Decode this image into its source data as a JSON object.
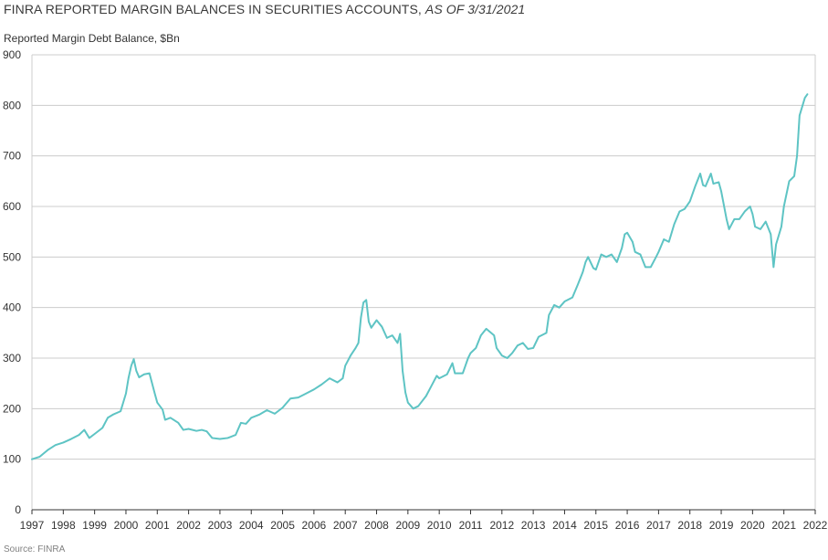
{
  "header": {
    "title_main": "FINRA REPORTED MARGIN BALANCES IN SECURITIES ACCOUNTS,",
    "title_suffix": "AS OF 3/31/2021"
  },
  "axis": {
    "ylabel": "Reported Margin Debt Balance, $Bn"
  },
  "footer": {
    "source": "Source: FINRA"
  },
  "chart_data": {
    "type": "line",
    "title": "FINRA REPORTED MARGIN BALANCES IN SECURITIES ACCOUNTS, AS OF 3/31/2021",
    "xlabel": "",
    "ylabel": "Reported Margin Debt Balance, $Bn",
    "xlim": [
      1997,
      2022
    ],
    "ylim": [
      0,
      900
    ],
    "grid": true,
    "line_color": "#5ec4c4",
    "grid_color": "#cccccc",
    "x_ticks": [
      "1997",
      "1998",
      "1999",
      "2000",
      "2001",
      "2002",
      "2003",
      "2004",
      "2005",
      "2006",
      "2007",
      "2008",
      "2009",
      "2010",
      "2011",
      "2012",
      "2013",
      "2014",
      "2015",
      "2016",
      "2017",
      "2018",
      "2019",
      "2020",
      "2021",
      "2022"
    ],
    "y_ticks": [
      "0",
      "100",
      "200",
      "300",
      "400",
      "500",
      "600",
      "700",
      "800",
      "900"
    ],
    "series": [
      {
        "points": [
          [
            1997.0,
            100
          ],
          [
            1997.25,
            105
          ],
          [
            1997.5,
            118
          ],
          [
            1997.75,
            128
          ],
          [
            1998.0,
            133
          ],
          [
            1998.25,
            140
          ],
          [
            1998.5,
            148
          ],
          [
            1998.67,
            158
          ],
          [
            1998.83,
            142
          ],
          [
            1999.0,
            150
          ],
          [
            1999.25,
            162
          ],
          [
            1999.42,
            182
          ],
          [
            1999.58,
            188
          ],
          [
            1999.83,
            195
          ],
          [
            2000.0,
            230
          ],
          [
            2000.08,
            260
          ],
          [
            2000.17,
            285
          ],
          [
            2000.25,
            298
          ],
          [
            2000.33,
            275
          ],
          [
            2000.42,
            262
          ],
          [
            2000.58,
            268
          ],
          [
            2000.75,
            270
          ],
          [
            2000.92,
            230
          ],
          [
            2001.0,
            212
          ],
          [
            2001.17,
            198
          ],
          [
            2001.25,
            178
          ],
          [
            2001.42,
            182
          ],
          [
            2001.67,
            172
          ],
          [
            2001.83,
            158
          ],
          [
            2002.0,
            160
          ],
          [
            2002.25,
            156
          ],
          [
            2002.42,
            158
          ],
          [
            2002.58,
            155
          ],
          [
            2002.75,
            142
          ],
          [
            2003.0,
            140
          ],
          [
            2003.25,
            142
          ],
          [
            2003.5,
            148
          ],
          [
            2003.67,
            172
          ],
          [
            2003.83,
            170
          ],
          [
            2004.0,
            182
          ],
          [
            2004.25,
            188
          ],
          [
            2004.5,
            197
          ],
          [
            2004.75,
            190
          ],
          [
            2005.0,
            202
          ],
          [
            2005.25,
            220
          ],
          [
            2005.5,
            222
          ],
          [
            2005.75,
            230
          ],
          [
            2006.0,
            238
          ],
          [
            2006.25,
            248
          ],
          [
            2006.5,
            260
          ],
          [
            2006.75,
            252
          ],
          [
            2006.92,
            260
          ],
          [
            2007.0,
            285
          ],
          [
            2007.17,
            305
          ],
          [
            2007.33,
            320
          ],
          [
            2007.42,
            330
          ],
          [
            2007.5,
            380
          ],
          [
            2007.58,
            410
          ],
          [
            2007.67,
            415
          ],
          [
            2007.75,
            372
          ],
          [
            2007.83,
            360
          ],
          [
            2008.0,
            375
          ],
          [
            2008.17,
            362
          ],
          [
            2008.33,
            340
          ],
          [
            2008.5,
            345
          ],
          [
            2008.67,
            330
          ],
          [
            2008.75,
            348
          ],
          [
            2008.83,
            275
          ],
          [
            2008.92,
            232
          ],
          [
            2009.0,
            212
          ],
          [
            2009.17,
            200
          ],
          [
            2009.33,
            205
          ],
          [
            2009.58,
            225
          ],
          [
            2009.75,
            245
          ],
          [
            2009.92,
            265
          ],
          [
            2010.0,
            260
          ],
          [
            2010.25,
            268
          ],
          [
            2010.42,
            290
          ],
          [
            2010.5,
            270
          ],
          [
            2010.75,
            270
          ],
          [
            2010.92,
            300
          ],
          [
            2011.0,
            310
          ],
          [
            2011.17,
            320
          ],
          [
            2011.33,
            345
          ],
          [
            2011.5,
            358
          ],
          [
            2011.75,
            345
          ],
          [
            2011.83,
            320
          ],
          [
            2012.0,
            305
          ],
          [
            2012.17,
            300
          ],
          [
            2012.33,
            310
          ],
          [
            2012.5,
            325
          ],
          [
            2012.67,
            330
          ],
          [
            2012.83,
            318
          ],
          [
            2013.0,
            320
          ],
          [
            2013.17,
            342
          ],
          [
            2013.42,
            350
          ],
          [
            2013.5,
            385
          ],
          [
            2013.67,
            405
          ],
          [
            2013.83,
            400
          ],
          [
            2014.0,
            412
          ],
          [
            2014.25,
            420
          ],
          [
            2014.42,
            445
          ],
          [
            2014.58,
            470
          ],
          [
            2014.67,
            490
          ],
          [
            2014.75,
            500
          ],
          [
            2014.92,
            478
          ],
          [
            2015.0,
            475
          ],
          [
            2015.17,
            505
          ],
          [
            2015.33,
            500
          ],
          [
            2015.5,
            505
          ],
          [
            2015.67,
            490
          ],
          [
            2015.83,
            518
          ],
          [
            2015.92,
            545
          ],
          [
            2016.0,
            548
          ],
          [
            2016.17,
            530
          ],
          [
            2016.25,
            510
          ],
          [
            2016.42,
            505
          ],
          [
            2016.58,
            480
          ],
          [
            2016.75,
            480
          ],
          [
            2016.92,
            500
          ],
          [
            2017.0,
            510
          ],
          [
            2017.17,
            535
          ],
          [
            2017.33,
            530
          ],
          [
            2017.5,
            565
          ],
          [
            2017.67,
            590
          ],
          [
            2017.83,
            595
          ],
          [
            2018.0,
            610
          ],
          [
            2018.17,
            640
          ],
          [
            2018.33,
            665
          ],
          [
            2018.42,
            642
          ],
          [
            2018.5,
            640
          ],
          [
            2018.67,
            665
          ],
          [
            2018.75,
            645
          ],
          [
            2018.92,
            648
          ],
          [
            2019.0,
            630
          ],
          [
            2019.17,
            575
          ],
          [
            2019.25,
            555
          ],
          [
            2019.42,
            575
          ],
          [
            2019.58,
            575
          ],
          [
            2019.75,
            590
          ],
          [
            2019.92,
            600
          ],
          [
            2020.0,
            585
          ],
          [
            2020.08,
            560
          ],
          [
            2020.25,
            555
          ],
          [
            2020.42,
            570
          ],
          [
            2020.58,
            545
          ],
          [
            2020.67,
            480
          ],
          [
            2020.75,
            525
          ],
          [
            2020.92,
            560
          ],
          [
            2021.0,
            600
          ],
          [
            2021.17,
            650
          ],
          [
            2021.33,
            660
          ],
          [
            2021.42,
            700
          ],
          [
            2021.5,
            780
          ],
          [
            2021.67,
            815
          ],
          [
            2021.75,
            822
          ]
        ]
      }
    ]
  }
}
